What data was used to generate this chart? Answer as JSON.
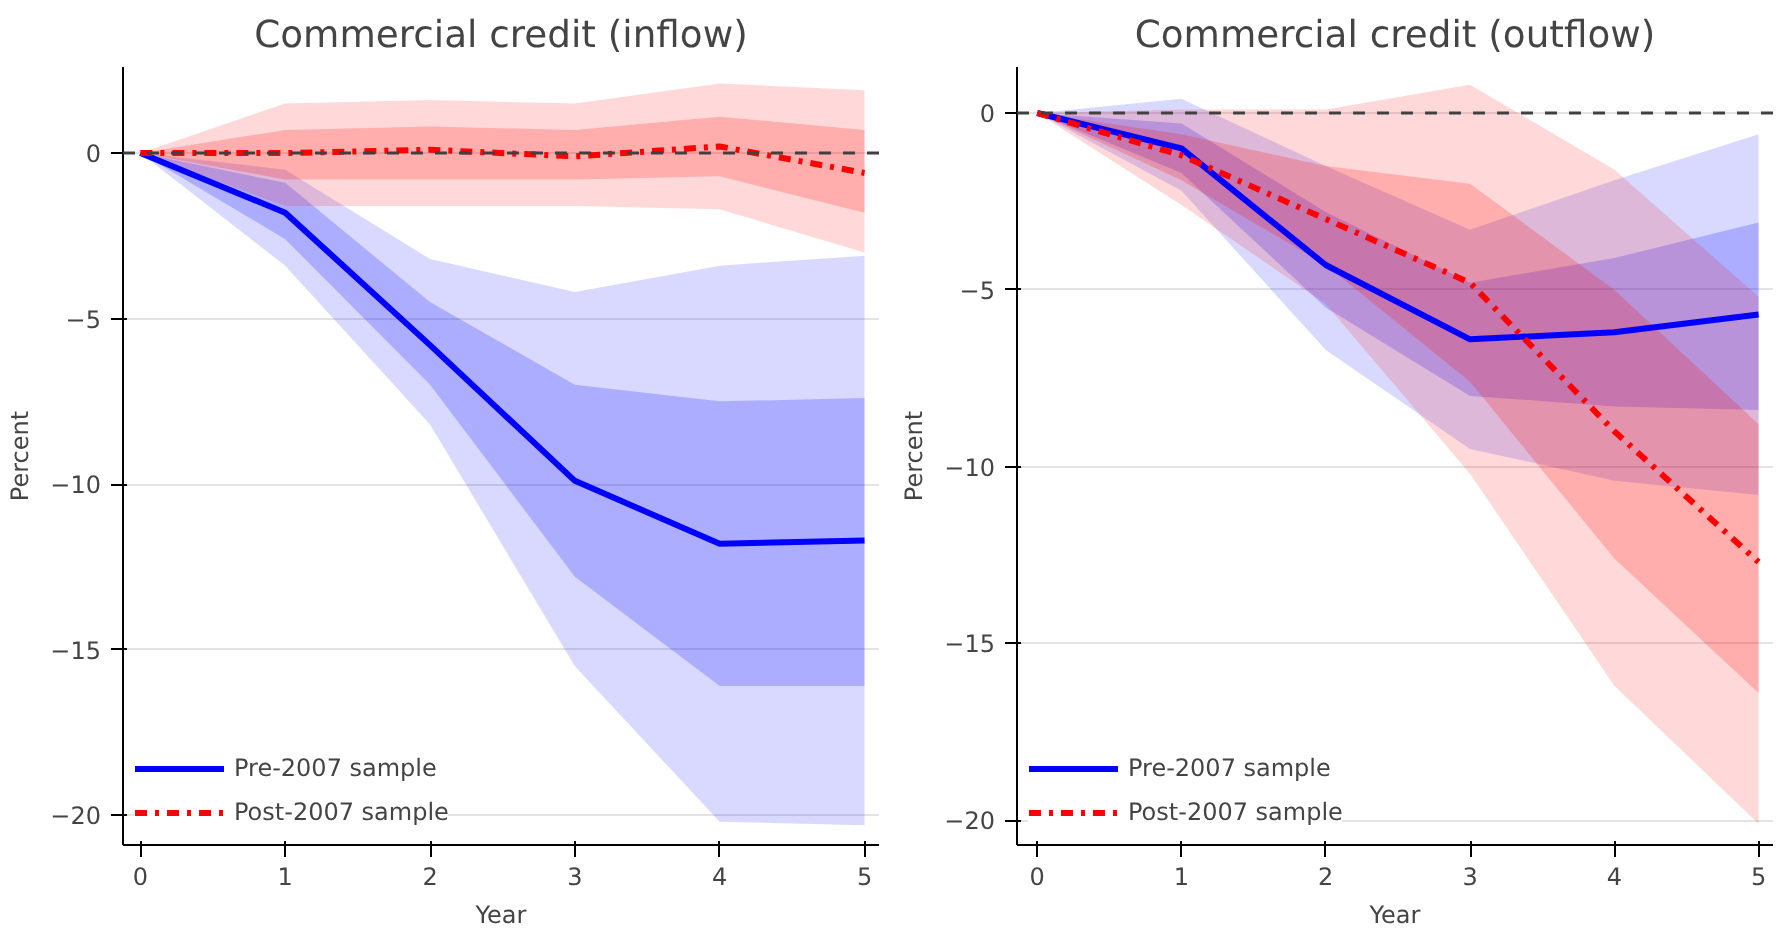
{
  "chart_data": [
    {
      "type": "line",
      "title": "Commercial credit (inflow)",
      "xlabel": "Year",
      "ylabel": "Percent",
      "x": [
        0,
        1,
        2,
        3,
        4,
        5
      ],
      "xlim": [
        -0.12,
        5.1
      ],
      "xticks": [
        0,
        1,
        2,
        3,
        4,
        5
      ],
      "ylim": [
        -20.9,
        2.6
      ],
      "yticks": [
        0,
        -5,
        -10,
        -15,
        -20
      ],
      "grid": "y",
      "legend": "bottom left",
      "ref_lines": [
        {
          "axis": "y",
          "value": 0,
          "label": null,
          "color": "#404040",
          "line_style": "dashed"
        }
      ],
      "series": [
        {
          "color": "#0000ff",
          "values": [
            null,
            null,
            null,
            null,
            null,
            null
          ],
          "lower": [
            0,
            -3.4,
            -8.2,
            -15.5,
            -20.2,
            -20.3
          ],
          "upper": [
            0,
            -0.5,
            -3.2,
            -4.2,
            -3.4,
            -3.1
          ]
        },
        {
          "name": "Pre-2007 sample",
          "color": "#0000ff",
          "line_style": "solid",
          "values": [
            0,
            -1.8,
            -5.8,
            -9.9,
            -11.8,
            -11.7
          ],
          "lower": [
            0,
            -2.6,
            -7.0,
            -12.8,
            -16.1,
            -16.1
          ],
          "upper": [
            0,
            -0.9,
            -4.5,
            -7.0,
            -7.5,
            -7.4
          ]
        },
        {
          "color": "#ff0000",
          "values": [
            null,
            null,
            null,
            null,
            null,
            null
          ],
          "lower": [
            0,
            -1.6,
            -1.6,
            -1.6,
            -1.7,
            -3.0
          ],
          "upper": [
            0,
            1.5,
            1.6,
            1.5,
            2.1,
            1.9
          ]
        },
        {
          "name": "Post-2007 sample",
          "color": "#ff0000",
          "line_style": "dashdot",
          "values": [
            0,
            0,
            0.1,
            -0.1,
            0.2,
            -0.6
          ],
          "lower": [
            0,
            -0.8,
            -0.8,
            -0.8,
            -0.7,
            -1.8
          ],
          "upper": [
            0,
            0.7,
            0.8,
            0.7,
            1.1,
            0.7
          ]
        }
      ]
    },
    {
      "type": "line",
      "title": "Commercial credit (outflow)",
      "xlabel": "Year",
      "ylabel": "Percent",
      "x": [
        0,
        1,
        2,
        3,
        4,
        5
      ],
      "xlim": [
        -0.14,
        5.1
      ],
      "xticks": [
        0,
        1,
        2,
        3,
        4,
        5
      ],
      "ylim": [
        -20.7,
        1.3
      ],
      "yticks": [
        0,
        -5,
        -10,
        -15,
        -20
      ],
      "grid": "y",
      "legend": "bottom left",
      "ref_lines": [
        {
          "axis": "y",
          "value": 0,
          "label": null,
          "color": "#404040",
          "line_style": "dashed"
        }
      ],
      "series": [
        {
          "color": "#0000ff",
          "values": [
            null,
            null,
            null,
            null,
            null,
            null
          ],
          "lower": [
            0,
            -2.2,
            -6.7,
            -9.5,
            -10.4,
            -10.8
          ],
          "upper": [
            0,
            0.4,
            -1.5,
            -3.3,
            -1.9,
            -0.6
          ]
        },
        {
          "name": "Pre-2007 sample",
          "color": "#0000ff",
          "line_style": "solid",
          "values": [
            0,
            -1.0,
            -4.3,
            -6.4,
            -6.2,
            -5.7
          ],
          "lower": [
            0,
            -1.7,
            -5.5,
            -8.0,
            -8.3,
            -8.4
          ],
          "upper": [
            0,
            -0.3,
            -2.8,
            -4.8,
            -4.1,
            -3.1
          ]
        },
        {
          "color": "#ff0000",
          "values": [
            null,
            null,
            null,
            null,
            null,
            null
          ],
          "lower": [
            0,
            -2.6,
            -5.4,
            -10.2,
            -16.2,
            -20.1
          ],
          "upper": [
            0,
            0.1,
            0.1,
            0.8,
            -1.6,
            -5.2
          ]
        },
        {
          "name": "Post-2007 sample",
          "color": "#ff0000",
          "line_style": "dashdot",
          "values": [
            0,
            -1.2,
            -3.0,
            -4.8,
            -9.0,
            -12.7
          ],
          "lower": [
            0,
            -1.9,
            -4.3,
            -7.6,
            -12.6,
            -16.4
          ],
          "upper": [
            0,
            -0.6,
            -1.5,
            -2.0,
            -5.0,
            -8.8
          ]
        }
      ]
    }
  ]
}
